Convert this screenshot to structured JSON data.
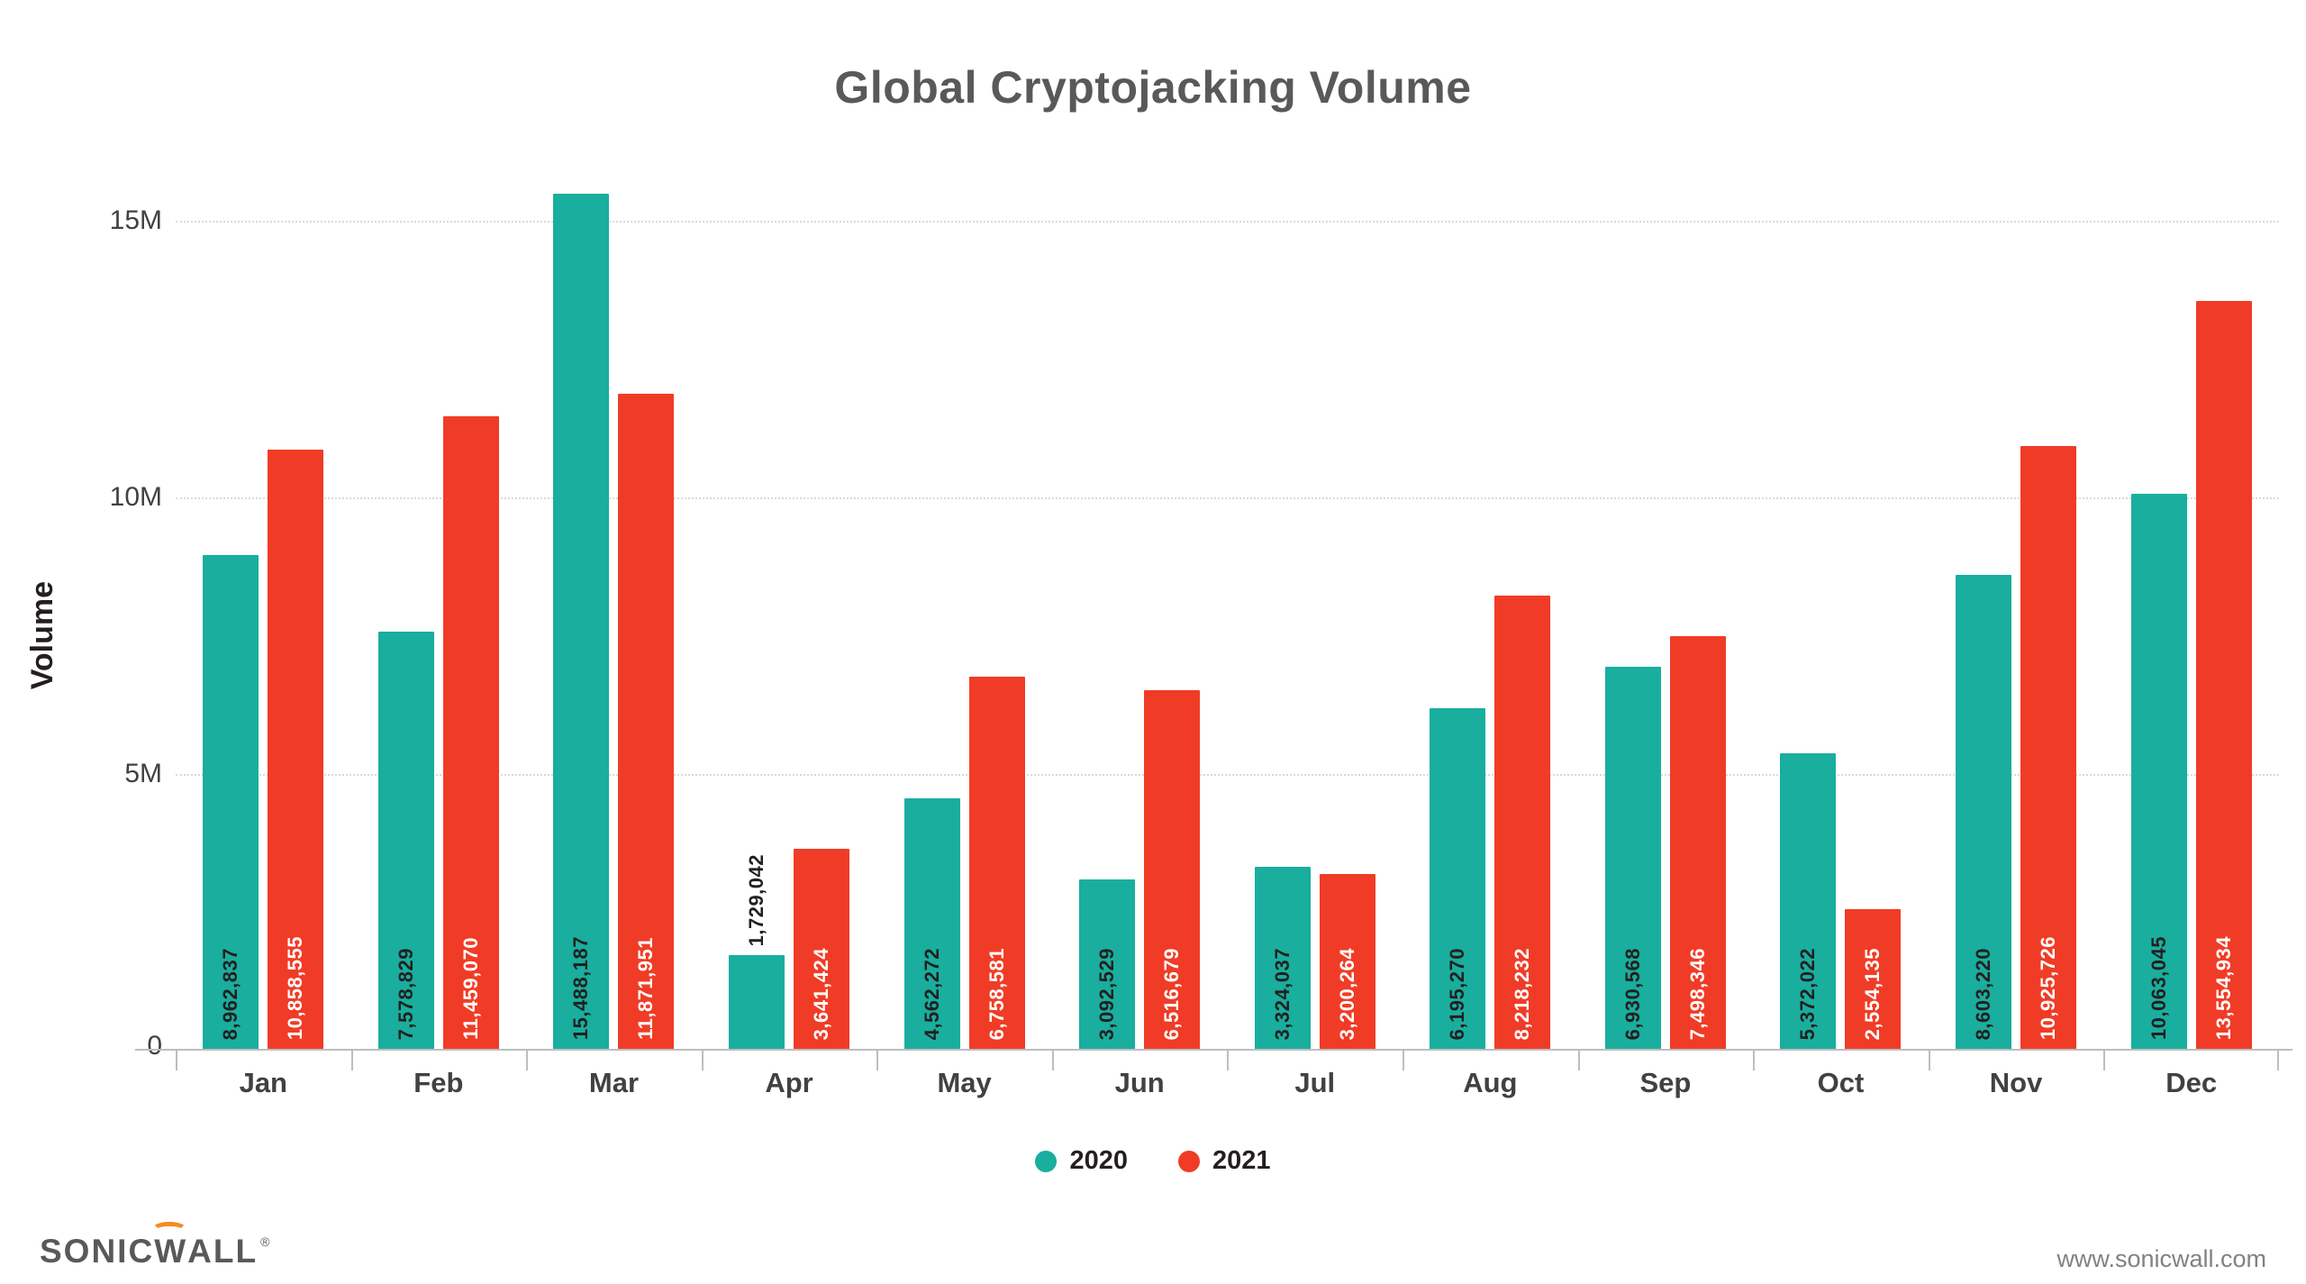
{
  "title": "Global Cryptojacking Volume",
  "y_axis": {
    "label": "Volume",
    "ticks": [
      "15M",
      "10M",
      "5M",
      "0"
    ]
  },
  "legend": [
    {
      "label": "2020",
      "color": "#19ae9e"
    },
    {
      "label": "2021",
      "color": "#f03c26"
    }
  ],
  "footer": {
    "logo_part1": "SONIC",
    "logo_part2": "W",
    "logo_part3": "ALL",
    "registered": "®",
    "website": "www.sonicwall.com"
  },
  "colors": {
    "teal": "#19ae9e",
    "red": "#f03c26",
    "grid": "#d9d9d9",
    "axis": "#bcbec0",
    "title_text": "#58595b"
  },
  "chart_data": {
    "type": "bar",
    "title": "Global Cryptojacking Volume",
    "xlabel": "",
    "ylabel": "Volume",
    "ylim": [
      0,
      15000000
    ],
    "yticks": [
      0,
      5000000,
      10000000,
      15000000
    ],
    "grid": "horizontal-dotted",
    "legend_position": "bottom",
    "categories": [
      "Jan",
      "Feb",
      "Mar",
      "Apr",
      "May",
      "Jun",
      "Jul",
      "Aug",
      "Sep",
      "Oct",
      "Nov",
      "Dec"
    ],
    "series": [
      {
        "name": "2020",
        "color": "#19ae9e",
        "label_color": "#231f20",
        "values": [
          8962837,
          7578829,
          15488187,
          1729042,
          4562272,
          3092529,
          3324037,
          6195270,
          6930568,
          5372022,
          8603220,
          10063045
        ],
        "labels": [
          "8,962,837",
          "7,578,829",
          "15,488,187",
          "1,729,042",
          "4,562,272",
          "3,092,529",
          "3,324,037",
          "6,195,270",
          "6,930,568",
          "5,372,022",
          "8,603,220",
          "10,063,045"
        ]
      },
      {
        "name": "2021",
        "color": "#f03c26",
        "label_color": "#ffffff",
        "values": [
          10858555,
          11459070,
          11871951,
          3641424,
          6758581,
          6516679,
          3200264,
          8218232,
          7498346,
          2554135,
          10925726,
          13554934
        ],
        "labels": [
          "10,858,555",
          "11,459,070",
          "11,871,951",
          "3,641,424",
          "6,758,581",
          "6,516,679",
          "3,200,264",
          "8,218,232",
          "7,498,346",
          "2,554,135",
          "10,925,726",
          "13,554,934"
        ]
      }
    ]
  }
}
